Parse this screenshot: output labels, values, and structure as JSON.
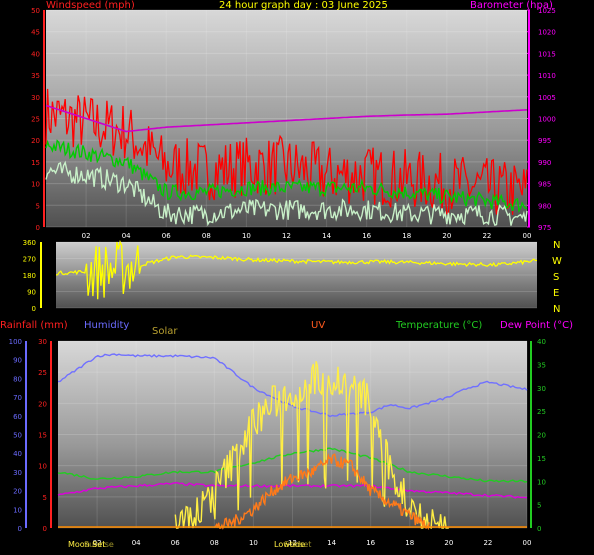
{
  "header": {
    "windspeed_label": "Windspeed (mph)",
    "title": "24 hour graph day : 03 June 2025",
    "barometer_label": "Barometer (hpa)"
  },
  "bottom_labels": {
    "rainfall": "Rainfall (mm)",
    "humidity": "Humidity",
    "solar": "Solar",
    "uv": "UV",
    "temperature": "Temperature (°C)",
    "dewpoint": "Dew Point (°C)"
  },
  "compass": [
    "N",
    "W",
    "S",
    "E",
    "N"
  ],
  "events": {
    "moon_set": "Moon Set",
    "sunrise": "Sunrise",
    "lowtide": "Lowtide",
    "sunset": "Sunset"
  },
  "colors": {
    "wind": "#ff0000",
    "gust": "#ff0000",
    "avg_wind": "#00cc00",
    "wind_low": "#c8f0c8",
    "barometer": "#cc00cc",
    "direction": "#ffff00",
    "humidity": "#7070ff",
    "temperature": "#22cc22",
    "dewpoint": "#dd00dd",
    "solar": "#ffee44",
    "uv": "#ff7a1a",
    "rain": "#ff8c00"
  },
  "chart_data": [
    {
      "type": "line",
      "title": "24 hour graph day : 03 June 2025",
      "ylabel": "Windspeed (mph)",
      "y2label": "Barometer (hpa)",
      "x": [
        0,
        2,
        4,
        6,
        8,
        10,
        12,
        14,
        16,
        18,
        20,
        22,
        24
      ],
      "xticks": [
        "02",
        "04",
        "06",
        "08",
        "10",
        "12",
        "14",
        "16",
        "18",
        "20",
        "22",
        "00"
      ],
      "ylim": [
        0,
        50
      ],
      "yticks": [
        0,
        5,
        10,
        15,
        20,
        25,
        30,
        35,
        40,
        45,
        50
      ],
      "y2lim": [
        975,
        1025
      ],
      "y2ticks": [
        975,
        980,
        985,
        990,
        995,
        1000,
        1005,
        1010,
        1015,
        1020,
        1025
      ],
      "series": [
        {
          "name": "Windspeed (mph)",
          "color": "#ff0000",
          "values": [
            26,
            24,
            22,
            14,
            13,
            14,
            14,
            12,
            12,
            11,
            10,
            9,
            8
          ]
        },
        {
          "name": "avg",
          "color": "#00cc00",
          "values": [
            19,
            17,
            15,
            8,
            8,
            9,
            9,
            9,
            9,
            8,
            7,
            6,
            5
          ]
        },
        {
          "name": "low",
          "color": "#c8f0c8",
          "values": [
            13,
            12,
            10,
            3,
            3,
            4,
            4,
            4,
            4,
            3,
            3,
            3,
            2
          ]
        },
        {
          "name": "Barometer (hpa)",
          "color": "#cc00cc",
          "values": [
            1003,
            1000,
            997,
            998,
            998.5,
            999,
            999.5,
            1000,
            1000.5,
            1000.8,
            1001,
            1001.5,
            1002
          ]
        }
      ]
    },
    {
      "type": "line",
      "ylim": [
        0,
        360
      ],
      "yticks": [
        0,
        90,
        180,
        270,
        360
      ],
      "series": [
        {
          "name": "direction",
          "color": "#ffff00",
          "values": [
            190,
            200,
            230,
            280,
            275,
            262,
            255,
            250,
            252,
            248,
            240,
            235,
            258
          ]
        }
      ]
    },
    {
      "type": "line",
      "xticks": [
        "02",
        "04",
        "06",
        "08",
        "10",
        "12",
        "14",
        "16",
        "18",
        "20",
        "22",
        "00"
      ],
      "ylabel": "Rainfall (mm)",
      "y2label": "Temperature (°C)",
      "ylim_rain": [
        0,
        30
      ],
      "yticks_rain": [
        0,
        5,
        10,
        15,
        20,
        25,
        30
      ],
      "ylim_humidity": [
        0,
        100
      ],
      "yticks_humidity": [
        0,
        10,
        20,
        30,
        40,
        50,
        60,
        70,
        80,
        90,
        100
      ],
      "y2lim": [
        0,
        40
      ],
      "y2ticks": [
        0,
        5,
        10,
        15,
        20,
        25,
        30,
        35,
        40
      ],
      "series": [
        {
          "name": "Humidity",
          "color": "#7070ff",
          "x": [
            0,
            2,
            3,
            4,
            6,
            8,
            10,
            12,
            14,
            16,
            17,
            18,
            20,
            21,
            22,
            24
          ],
          "values": [
            78,
            92,
            93,
            92,
            92,
            91,
            75,
            65,
            60,
            62,
            66,
            64,
            70,
            75,
            78,
            74
          ]
        },
        {
          "name": "Temperature (°C)",
          "color": "#22cc22",
          "x": [
            0,
            2,
            4,
            6,
            8,
            10,
            12,
            14,
            16,
            18,
            20,
            22,
            24
          ],
          "values": [
            12,
            10.5,
            11,
            12,
            12,
            14,
            16,
            17,
            15,
            12,
            11,
            10,
            10
          ]
        },
        {
          "name": "Dew Point (°C)",
          "color": "#dd00dd",
          "x": [
            0,
            2,
            4,
            6,
            8,
            10,
            12,
            14,
            16,
            18,
            20,
            22,
            24
          ],
          "values": [
            7,
            8.5,
            9,
            9.5,
            9,
            9,
            9,
            9,
            9,
            8,
            7.5,
            7,
            6.5
          ]
        },
        {
          "name": "Solar",
          "color": "#ffee44",
          "x": [
            6,
            7,
            8,
            9,
            10,
            11,
            12,
            13,
            14,
            15,
            16,
            17,
            18,
            19,
            20
          ],
          "values": [
            0.5,
            2,
            6,
            11,
            17,
            20,
            22,
            24,
            24,
            23,
            20,
            9,
            4,
            1,
            0
          ]
        },
        {
          "name": "UV",
          "color": "#ff7a1a",
          "x": [
            8,
            9,
            10,
            11,
            12,
            13,
            14,
            15,
            16,
            17,
            18,
            19
          ],
          "values": [
            0,
            1,
            3,
            6,
            8,
            9,
            11,
            10,
            6,
            4,
            2,
            0
          ]
        }
      ]
    }
  ]
}
